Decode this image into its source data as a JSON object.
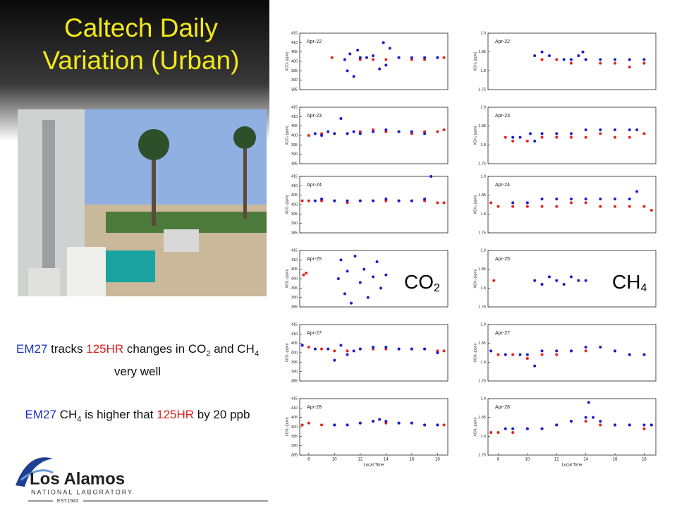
{
  "title": [
    "Caltech Daily",
    "Variation (Urban)"
  ],
  "notes": [
    [
      {
        "text": "EM27",
        "color": "#1a2fc0"
      },
      {
        "text": " tracks "
      },
      {
        "text": "125HR",
        "color": "#e0201a"
      },
      {
        "text": " changes in CO"
      },
      {
        "text": "2",
        "sub": true
      },
      {
        "text": " and CH"
      },
      {
        "text": "4",
        "sub": true
      },
      {
        "text": " very well"
      }
    ],
    [
      {
        "text": "EM27",
        "color": "#1a2fc0"
      },
      {
        "text": " CH"
      },
      {
        "text": "4",
        "sub": true
      },
      {
        "text": " is higher that "
      },
      {
        "text": "125HR",
        "color": "#e0201a"
      },
      {
        "text": " by 20 ppb"
      }
    ]
  ],
  "logo": {
    "name": "Los Alamos",
    "sub": "NATIONAL LABORATORY",
    "est": "EST.1943"
  },
  "chart_data": [
    {
      "type": "scatter",
      "label": "Apr-22",
      "ylabel": "XCO₂ (ppm)",
      "xlim": [
        7.3,
        18.8
      ],
      "ylim": [
        385,
        415
      ],
      "yticks": [
        385,
        390,
        395,
        400,
        405,
        410,
        415
      ],
      "series": [
        {
          "color": "#e8231e",
          "x": [
            9.8,
            12,
            13,
            14,
            15,
            16,
            17,
            18,
            18.5
          ],
          "values": [
            402,
            401,
            401,
            401,
            402,
            401,
            401,
            402,
            402
          ]
        },
        {
          "color": "#1c1ccf",
          "x": [
            10.8,
            11,
            11.2,
            11.5,
            11.8,
            12,
            12.5,
            13,
            13.5,
            13.8,
            14,
            14.3,
            15,
            16,
            17,
            18
          ],
          "values": [
            401,
            395,
            404,
            392,
            406,
            402,
            402,
            403,
            396,
            410,
            398,
            407,
            402,
            402,
            402,
            402
          ]
        }
      ]
    },
    {
      "type": "scatter",
      "label": "Apr-22",
      "ylabel": "XCH₄ (ppm)",
      "xlim": [
        7.3,
        18.8
      ],
      "ylim": [
        1.75,
        1.9
      ],
      "yticks": [
        1.75,
        1.8,
        1.85,
        1.9
      ],
      "series": [
        {
          "color": "#e8231e",
          "x": [
            11,
            12,
            13,
            14,
            15,
            16,
            17,
            18
          ],
          "values": [
            1.83,
            1.83,
            1.82,
            1.83,
            1.82,
            1.82,
            1.81,
            1.82
          ]
        },
        {
          "color": "#1c1ccf",
          "x": [
            10.5,
            11,
            11.5,
            12.5,
            13,
            13.5,
            13.8,
            14,
            15,
            16,
            17,
            18
          ],
          "values": [
            1.84,
            1.85,
            1.84,
            1.83,
            1.83,
            1.84,
            1.85,
            1.83,
            1.83,
            1.83,
            1.83,
            1.83
          ]
        }
      ]
    },
    {
      "type": "scatter",
      "label": "Apr-23",
      "ylabel": "XCO₂ (ppm)",
      "xlim": [
        7.3,
        18.8
      ],
      "ylim": [
        385,
        415
      ],
      "yticks": [
        385,
        390,
        395,
        400,
        405,
        410,
        415
      ],
      "series": [
        {
          "color": "#e8231e",
          "x": [
            8,
            9,
            10,
            11,
            12,
            13,
            14,
            15,
            16,
            17,
            18,
            18.5
          ],
          "values": [
            400,
            401,
            401,
            401,
            402,
            403,
            402,
            402,
            401,
            402,
            402,
            403
          ]
        },
        {
          "color": "#1c1ccf",
          "x": [
            8.5,
            9,
            9.5,
            10,
            10.5,
            11,
            11.5,
            12,
            13,
            14,
            15,
            16,
            17
          ],
          "values": [
            401,
            400,
            402,
            401,
            409,
            401,
            402,
            401,
            402,
            403,
            402,
            402,
            401
          ]
        }
      ]
    },
    {
      "type": "scatter",
      "label": "Apr-23",
      "ylabel": "XCH₄ (ppm)",
      "xlim": [
        7.3,
        18.8
      ],
      "ylim": [
        1.75,
        1.9
      ],
      "yticks": [
        1.75,
        1.8,
        1.85,
        1.9
      ],
      "series": [
        {
          "color": "#e8231e",
          "x": [
            8.5,
            9,
            10,
            11,
            12,
            13,
            14,
            15,
            16,
            17,
            18
          ],
          "values": [
            1.82,
            1.81,
            1.81,
            1.82,
            1.82,
            1.82,
            1.82,
            1.83,
            1.82,
            1.82,
            1.83
          ]
        },
        {
          "color": "#1c1ccf",
          "x": [
            9,
            9.5,
            10.2,
            10.5,
            11,
            12,
            13,
            14,
            15,
            16,
            17,
            17.5
          ],
          "values": [
            1.82,
            1.82,
            1.83,
            1.81,
            1.83,
            1.83,
            1.83,
            1.84,
            1.84,
            1.84,
            1.84,
            1.84
          ]
        }
      ]
    },
    {
      "type": "scatter",
      "label": "Apr-24",
      "ylabel": "XCO₂ (ppm)",
      "xlim": [
        7.3,
        18.8
      ],
      "ylim": [
        385,
        415
      ],
      "yticks": [
        385,
        390,
        395,
        400,
        405,
        410,
        415
      ],
      "series": [
        {
          "color": "#e8231e",
          "x": [
            7.5,
            8,
            9,
            10,
            11,
            12,
            13,
            14,
            15,
            16,
            17,
            18,
            18.5
          ],
          "values": [
            402,
            402,
            402,
            402,
            401,
            402,
            402,
            402,
            402,
            402,
            402,
            401,
            401
          ]
        },
        {
          "color": "#1c1ccf",
          "x": [
            8.5,
            9,
            10,
            11,
            12,
            13,
            14,
            15,
            16,
            17,
            17.5
          ],
          "values": [
            402,
            403,
            402,
            402,
            402,
            402,
            403,
            402,
            402,
            403,
            415
          ]
        }
      ]
    },
    {
      "type": "scatter",
      "label": "Apr-24",
      "ylabel": "XCH₄ (ppm)",
      "xlim": [
        7.3,
        18.8
      ],
      "ylim": [
        1.75,
        1.9
      ],
      "yticks": [
        1.75,
        1.8,
        1.85,
        1.9
      ],
      "series": [
        {
          "color": "#e8231e",
          "x": [
            7.5,
            8,
            9,
            10,
            11,
            12,
            13,
            14,
            15,
            16,
            17,
            18,
            18.5
          ],
          "values": [
            1.83,
            1.82,
            1.82,
            1.82,
            1.82,
            1.82,
            1.83,
            1.83,
            1.82,
            1.82,
            1.82,
            1.82,
            1.81
          ]
        },
        {
          "color": "#1c1ccf",
          "x": [
            9,
            10,
            11,
            12,
            13,
            14,
            15,
            16,
            17,
            17.5
          ],
          "values": [
            1.83,
            1.83,
            1.84,
            1.84,
            1.84,
            1.84,
            1.84,
            1.84,
            1.84,
            1.86
          ]
        }
      ]
    },
    {
      "type": "scatter",
      "label": "Apr-25",
      "ylabel": "XCO₂ (ppm)",
      "xlim": [
        7.3,
        18.8
      ],
      "ylim": [
        385,
        415
      ],
      "yticks": [
        385,
        390,
        395,
        400,
        405,
        410,
        415
      ],
      "big_label": {
        "text": "CO",
        "sub": "2"
      },
      "series": [
        {
          "color": "#e8231e",
          "x": [
            7.6,
            7.8
          ],
          "values": [
            402,
            403
          ]
        },
        {
          "color": "#1c1ccf",
          "x": [
            10.3,
            10.5,
            10.8,
            11,
            11.3,
            11.6,
            12,
            12.3,
            12.6,
            13,
            13.3,
            13.6,
            14
          ],
          "values": [
            400,
            410,
            392,
            404,
            387,
            412,
            398,
            405,
            390,
            401,
            409,
            395,
            402
          ]
        }
      ]
    },
    {
      "type": "scatter",
      "label": "Apr-25",
      "ylabel": "XCH₄ (ppm)",
      "xlim": [
        7.3,
        18.8
      ],
      "ylim": [
        1.75,
        1.9
      ],
      "yticks": [
        1.75,
        1.8,
        1.85,
        1.9
      ],
      "big_label": {
        "text": "CH",
        "sub": "4"
      },
      "series": [
        {
          "color": "#e8231e",
          "x": [
            7.7
          ],
          "values": [
            1.82
          ]
        },
        {
          "color": "#1c1ccf",
          "x": [
            10.5,
            11,
            11.5,
            12,
            12.5,
            13,
            13.5,
            14
          ],
          "values": [
            1.82,
            1.81,
            1.83,
            1.82,
            1.81,
            1.83,
            1.82,
            1.82
          ]
        }
      ]
    },
    {
      "type": "scatter",
      "label": "Apr-27",
      "ylabel": "XCO₂ (ppm)",
      "xlim": [
        7.3,
        18.8
      ],
      "ylim": [
        385,
        415
      ],
      "yticks": [
        385,
        390,
        395,
        400,
        405,
        410,
        415
      ],
      "series": [
        {
          "color": "#e8231e",
          "x": [
            7.5,
            8,
            9,
            10,
            11,
            12,
            13,
            14,
            15,
            16,
            17,
            18,
            18.5
          ],
          "values": [
            404,
            403,
            402,
            401,
            401,
            402,
            402,
            402,
            402,
            402,
            402,
            401,
            401
          ]
        },
        {
          "color": "#1c1ccf",
          "x": [
            7.5,
            8.5,
            9.5,
            10,
            10.5,
            11,
            11.5,
            12,
            13,
            14,
            15,
            16,
            17,
            18
          ],
          "values": [
            404,
            402,
            402,
            396,
            404,
            399,
            401,
            402,
            403,
            403,
            402,
            402,
            402,
            400
          ]
        }
      ]
    },
    {
      "type": "scatter",
      "label": "Apr-27",
      "ylabel": "XCH₄ (ppm)",
      "xlim": [
        7.3,
        18.8
      ],
      "ylim": [
        1.75,
        1.9
      ],
      "yticks": [
        1.75,
        1.8,
        1.85,
        1.9
      ],
      "series": [
        {
          "color": "#e8231e",
          "x": [
            8,
            9,
            10,
            11,
            12,
            13,
            14,
            15,
            16,
            17,
            18
          ],
          "values": [
            1.82,
            1.82,
            1.81,
            1.82,
            1.82,
            1.83,
            1.83,
            1.84,
            1.83,
            1.82,
            1.82
          ]
        },
        {
          "color": "#1c1ccf",
          "x": [
            7.5,
            8.5,
            9.5,
            10,
            10.5,
            11,
            12,
            13,
            14,
            15,
            16,
            17,
            18
          ],
          "values": [
            1.83,
            1.82,
            1.82,
            1.82,
            1.79,
            1.83,
            1.83,
            1.83,
            1.84,
            1.84,
            1.83,
            1.82,
            1.82
          ]
        }
      ]
    },
    {
      "type": "scatter",
      "label": "Apr-28",
      "ylabel": "XCO₂ (ppm)",
      "xlabel": "Local Time",
      "xlim": [
        7.3,
        18.8
      ],
      "ylim": [
        385,
        415
      ],
      "yticks": [
        385,
        390,
        395,
        400,
        405,
        410,
        415
      ],
      "xticks": [
        8,
        10,
        12,
        14,
        16,
        18
      ],
      "series": [
        {
          "color": "#e8231e",
          "x": [
            7.5,
            8,
            9,
            10,
            11,
            12,
            13,
            14,
            15,
            16,
            17,
            18,
            18.5
          ],
          "values": [
            401,
            402,
            401,
            401,
            401,
            402,
            403,
            402,
            402,
            402,
            401,
            401,
            401
          ]
        },
        {
          "color": "#1c1ccf",
          "x": [
            10,
            11,
            12,
            13,
            13.5,
            14,
            15,
            16,
            17,
            18
          ],
          "values": [
            401,
            401,
            402,
            403,
            404,
            403,
            402,
            402,
            401,
            401
          ]
        }
      ]
    },
    {
      "type": "scatter",
      "label": "Apr-28",
      "ylabel": "XCH₄ (ppm)",
      "xlabel": "Local Time",
      "xlim": [
        7.3,
        18.8
      ],
      "ylim": [
        1.75,
        1.9
      ],
      "yticks": [
        1.75,
        1.8,
        1.85,
        1.9
      ],
      "xticks": [
        8,
        10,
        12,
        14,
        16,
        18
      ],
      "series": [
        {
          "color": "#e8231e",
          "x": [
            7.5,
            8,
            9,
            10,
            11,
            12,
            13,
            14,
            15,
            16,
            17,
            18,
            18.5
          ],
          "values": [
            1.81,
            1.81,
            1.81,
            1.82,
            1.82,
            1.83,
            1.84,
            1.84,
            1.83,
            1.83,
            1.83,
            1.82,
            1.83
          ]
        },
        {
          "color": "#1c1ccf",
          "x": [
            8.5,
            9,
            10,
            11,
            12,
            13,
            14,
            14.2,
            14.5,
            15,
            16,
            17,
            18,
            18.5
          ],
          "values": [
            1.82,
            1.82,
            1.82,
            1.82,
            1.83,
            1.84,
            1.85,
            1.89,
            1.85,
            1.84,
            1.83,
            1.83,
            1.83,
            1.83
          ]
        }
      ]
    }
  ]
}
